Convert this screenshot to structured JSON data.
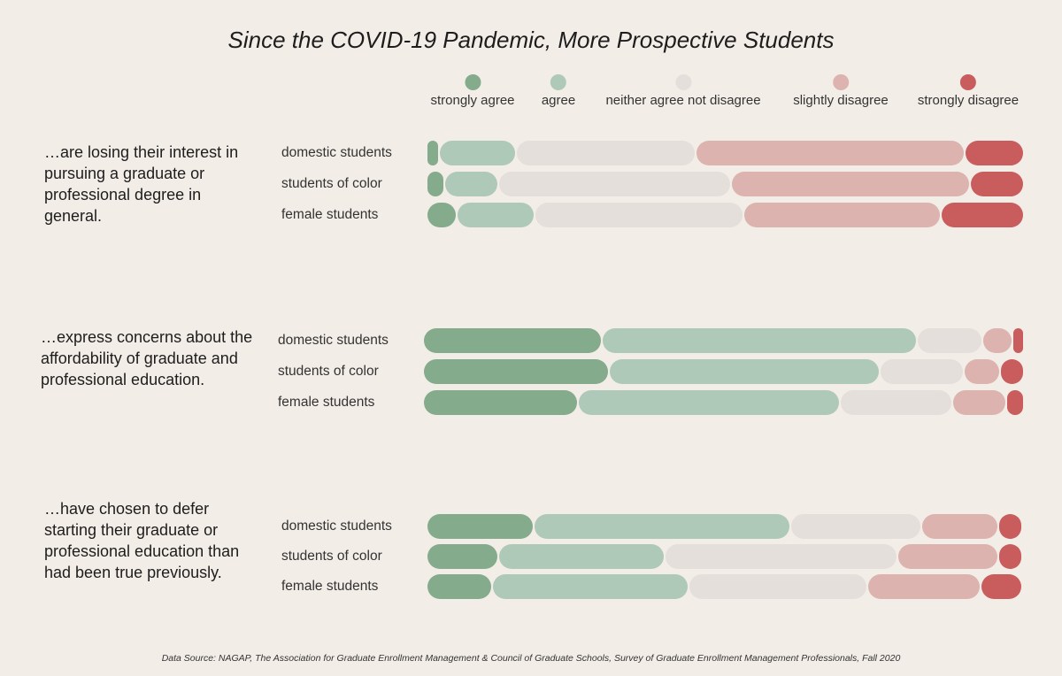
{
  "title": "Since the COVID-19 Pandemic, More Prospective Students",
  "source": "Data Source: NAGAP, The Association for Graduate Enrollment Management & Council of Graduate Schools, Survey of Graduate Enrollment Management Professionals, Fall 2020",
  "colors": {
    "strongly_agree": "#85ab8d",
    "agree": "#afc9b8",
    "neither": "#e4dfda",
    "slightly_disagree": "#dcb3ae",
    "strongly_disagree": "#c95c5d"
  },
  "chart_data": {
    "type": "bar",
    "stacked": true,
    "orientation": "horizontal",
    "unit": "percent",
    "legend": [
      "strongly agree",
      "agree",
      "neither agree not disagree",
      "slightly disagree",
      "strongly disagree"
    ],
    "groups": [
      {
        "question": "...are losing their interest in pursuing a graduate or professional degree in general.",
        "rows": [
          {
            "label": "domestic students",
            "values": [
              2,
              13,
              30,
              45,
              10
            ]
          },
          {
            "label": "students of color",
            "values": [
              3,
              9,
              39,
              40,
              9
            ]
          },
          {
            "label": "female students",
            "values": [
              5,
              13,
              35,
              33,
              14
            ]
          }
        ]
      },
      {
        "question": "...express concerns about the affordability of graduate and professional education.",
        "rows": [
          {
            "label": "domestic students",
            "values": [
              30,
              53,
              11,
              5,
              2
            ]
          },
          {
            "label": "students of color",
            "values": [
              31,
              45,
              14,
              6,
              4
            ]
          },
          {
            "label": "female students",
            "values": [
              26,
              44,
              19,
              9,
              3
            ]
          }
        ]
      },
      {
        "question": "...have chosen to defer starting their graduate or professional education than had been true previously.",
        "rows": [
          {
            "label": "domestic students",
            "values": [
              18,
              43,
              22,
              13,
              4
            ]
          },
          {
            "label": "students of color",
            "values": [
              12,
              28,
              39,
              17,
              4
            ]
          },
          {
            "label": "female students",
            "values": [
              11,
              33,
              30,
              19,
              7
            ]
          }
        ]
      }
    ]
  }
}
